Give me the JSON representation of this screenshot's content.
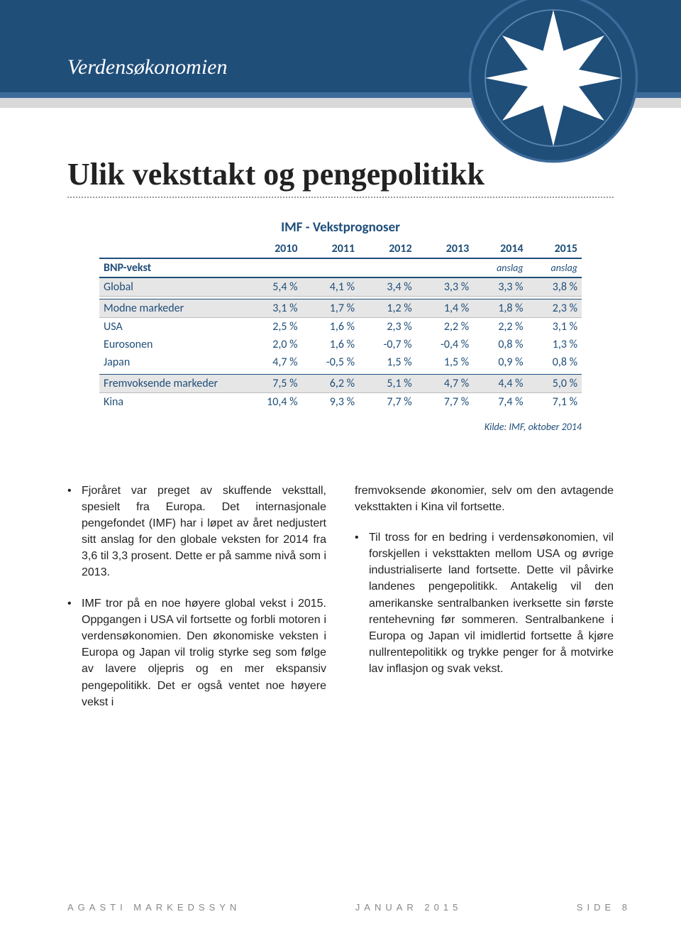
{
  "header": {
    "section_title": "Verdensøkonomien",
    "colors": {
      "band_top": "#1f4e79",
      "band_stripe": "#3d6a9a",
      "band_bottom": "#d9d9d9"
    }
  },
  "main_title": "Ulik veksttakt og pengepolitikk",
  "table": {
    "title": "IMF - Vekstprognoser",
    "row_label_header": "BNP-vekst",
    "year_headers": [
      "2010",
      "2011",
      "2012",
      "2013",
      "2014",
      "2015"
    ],
    "sub_headers": [
      "",
      "",
      "",
      "",
      "anslag",
      "anslag"
    ],
    "rows": [
      {
        "type": "section",
        "label": "Global",
        "cells": [
          "5,4 %",
          "4,1 %",
          "3,4 %",
          "3,3 %",
          "3,3 %",
          "3,8 %"
        ]
      },
      {
        "type": "spacer"
      },
      {
        "type": "section",
        "label": "Modne markeder",
        "cells": [
          "3,1 %",
          "1,7 %",
          "1,2 %",
          "1,4 %",
          "1,8 %",
          "2,3 %"
        ]
      },
      {
        "type": "plain",
        "label": "USA",
        "cells": [
          "2,5 %",
          "1,6 %",
          "2,3 %",
          "2,2 %",
          "2,2 %",
          "3,1 %"
        ]
      },
      {
        "type": "plain",
        "label": "Eurosonen",
        "cells": [
          "2,0 %",
          "1,6 %",
          "-0,7 %",
          "-0,4 %",
          "0,8 %",
          "1,3 %"
        ]
      },
      {
        "type": "plain",
        "label": "Japan",
        "cells": [
          "4,7 %",
          "-0,5 %",
          "1,5 %",
          "1,5 %",
          "0,9 %",
          "0,8 %"
        ]
      },
      {
        "type": "spacer"
      },
      {
        "type": "section",
        "label": "Fremvoksende markeder",
        "cells": [
          "7,5 %",
          "6,2 %",
          "5,1 %",
          "4,7 %",
          "4,4 %",
          "5,0 %"
        ]
      },
      {
        "type": "plain",
        "label": "Kina",
        "cells": [
          "10,4 %",
          "9,3 %",
          "7,7 %",
          "7,7 %",
          "7,4 %",
          "7,1 %"
        ]
      }
    ],
    "source": "Kilde: IMF, oktober 2014",
    "style": {
      "header_color": "#1f4e79",
      "section_bg": "#e6e6e6",
      "font": "Calibri"
    }
  },
  "body": {
    "left": [
      "Fjoråret var preget av skuffende veksttall, spesielt fra Europa. Det internasjonale pengefondet (IMF) har i løpet av året nedjustert sitt anslag for den globale veksten for 2014 fra 3,6 til 3,3 prosent. Dette er på samme nivå som i 2013.",
      "IMF tror på en noe høyere global vekst i 2015. Oppgangen i USA vil fortsette og forbli motoren i verdensøkonomien. Den økonomiske veksten i Europa og Japan vil trolig styrke seg som følge av lavere oljepris og en mer ekspansiv pengepolitikk. Det er også ventet noe høyere vekst i"
    ],
    "right_continued": "fremvoksende økonomier, selv om den avtagende veksttakten i Kina vil fortsette.",
    "right": [
      "Til tross for en bedring i verdensøkonomien, vil forskjellen i veksttakten mellom USA og øvrige industrialiserte land fortsette. Dette vil påvirke landenes pengepolitikk. Antakelig vil den amerikanske sentralbanken iverksette sin første rentehevning før sommeren. Sentralbankene i Europa og Japan vil imidlertid fortsette å kjøre nullrentepolitikk og trykke penger for å motvirke lav inflasjon og svak vekst."
    ]
  },
  "footer": {
    "left": "AGASTI MARKEDSSYN",
    "center": "JANUAR 2015",
    "right": "SIDE 8"
  }
}
